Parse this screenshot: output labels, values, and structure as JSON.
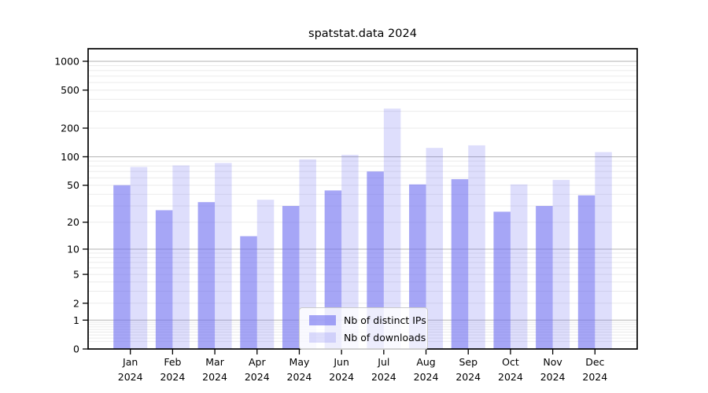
{
  "chart_data": {
    "type": "bar",
    "title": "spatstat.data 2024",
    "categories": [
      "Jan",
      "Feb",
      "Mar",
      "Apr",
      "May",
      "Jun",
      "Jul",
      "Aug",
      "Sep",
      "Oct",
      "Nov",
      "Dec"
    ],
    "year_label": "2024",
    "series": [
      {
        "name": "Nb of distinct IPs",
        "color": "rgba(106,106,240,0.60)",
        "values": [
          50,
          27,
          33,
          14,
          30,
          44,
          70,
          51,
          58,
          26,
          30,
          39
        ]
      },
      {
        "name": "Nb of downloads",
        "color": "rgba(106,106,240,0.22)",
        "values": [
          78,
          81,
          86,
          35,
          94,
          105,
          320,
          124,
          132,
          51,
          57,
          112
        ]
      }
    ],
    "yscale": "log1p",
    "yticks": [
      0,
      1,
      2,
      5,
      10,
      20,
      50,
      100,
      200,
      500,
      1000
    ],
    "ylim": [
      0,
      1350
    ],
    "grid": "on",
    "legend_position": "lower center",
    "colors": {
      "grid_major": "#b3b3b3",
      "grid_minor": "#ebebeb",
      "axis": "#000000",
      "text": "#000000"
    }
  }
}
